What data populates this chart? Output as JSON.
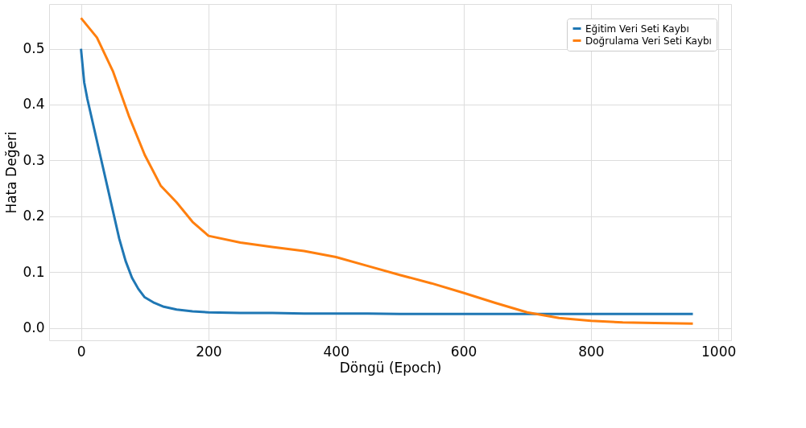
{
  "chart_data": {
    "type": "line",
    "xlabel": "Döngü (Epoch)",
    "ylabel": "Hata Değeri",
    "series": [
      {
        "name": "Eğitim Veri Seti Kaybı",
        "color": "#1f77b4",
        "x": [
          0,
          5,
          10,
          20,
          30,
          40,
          50,
          60,
          70,
          80,
          90,
          100,
          115,
          130,
          150,
          175,
          200,
          250,
          300,
          350,
          400,
          450,
          500,
          550,
          600,
          650,
          700,
          750,
          800,
          850,
          900,
          960
        ],
        "values": [
          0.5,
          0.44,
          0.41,
          0.36,
          0.31,
          0.26,
          0.21,
          0.16,
          0.12,
          0.09,
          0.07,
          0.055,
          0.045,
          0.038,
          0.033,
          0.03,
          0.028,
          0.027,
          0.027,
          0.026,
          0.026,
          0.026,
          0.025,
          0.025,
          0.025,
          0.025,
          0.025,
          0.025,
          0.025,
          0.025,
          0.025,
          0.025
        ]
      },
      {
        "name": "Doğrulama Veri Seti Kaybı",
        "color": "#ff7f0e",
        "x": [
          0,
          25,
          50,
          75,
          100,
          125,
          150,
          175,
          200,
          250,
          300,
          350,
          400,
          450,
          500,
          550,
          600,
          650,
          700,
          750,
          800,
          850,
          900,
          960
        ],
        "values": [
          0.555,
          0.52,
          0.46,
          0.38,
          0.31,
          0.255,
          0.225,
          0.19,
          0.165,
          0.153,
          0.145,
          0.138,
          0.127,
          0.111,
          0.095,
          0.08,
          0.063,
          0.045,
          0.028,
          0.018,
          0.013,
          0.01,
          0.009,
          0.008
        ]
      }
    ],
    "xlim": [
      -50,
      1020
    ],
    "ylim": [
      -0.022,
      0.58
    ],
    "xticks": [
      0,
      200,
      400,
      600,
      800,
      1000
    ],
    "yticks": [
      {
        "value": 0,
        "label": "0.0"
      },
      0.1,
      0.2,
      0.3,
      0.4,
      0.5
    ],
    "grid": true,
    "legend": "top right",
    "marker": "none",
    "line_style": "solid"
  }
}
